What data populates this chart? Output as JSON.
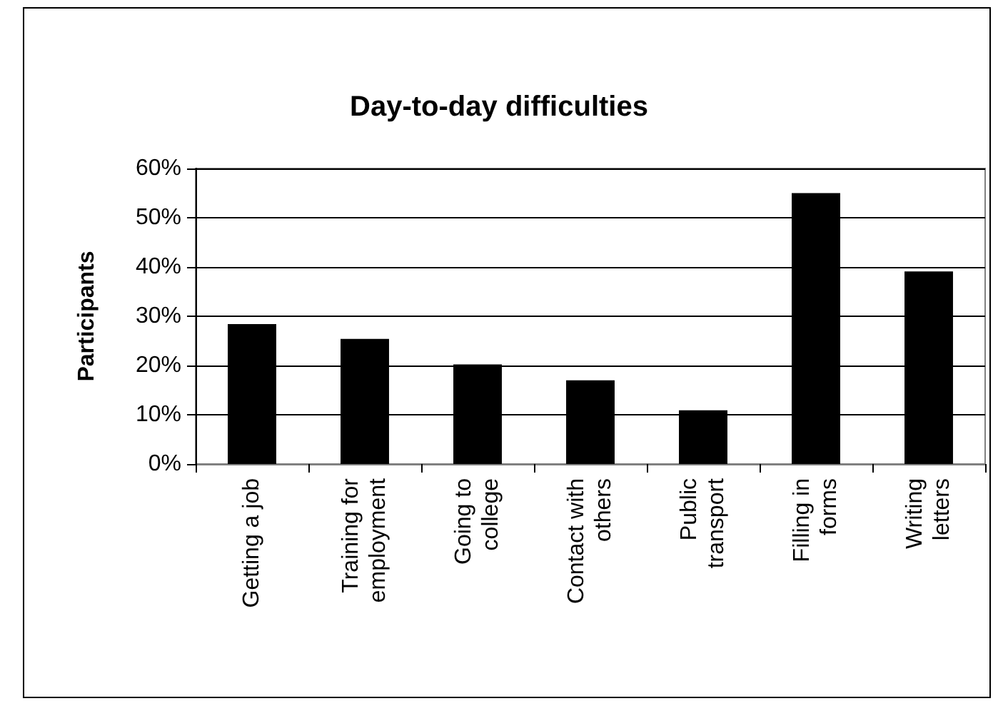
{
  "chart_data": {
    "type": "bar",
    "title": "Day-to-day difficulties",
    "ylabel": "Participants",
    "categories": [
      "Getting a job",
      "Training for\nemployment",
      "Going to\ncollege",
      "Contact with\nothers",
      "Public\ntransport",
      "Filling in\nforms",
      "Writing\nletters"
    ],
    "values": [
      28.4,
      25.4,
      20.2,
      17.0,
      10.9,
      55.0,
      39.1
    ],
    "color": "#000000",
    "ylim": [
      0,
      60
    ],
    "yticks": [
      {
        "value": 0,
        "label": "0%"
      },
      {
        "value": 10,
        "label": "10%"
      },
      {
        "value": 20,
        "label": "20%"
      },
      {
        "value": 30,
        "label": "30%"
      },
      {
        "value": 40,
        "label": "40%"
      },
      {
        "value": 50,
        "label": "50%"
      },
      {
        "value": 60,
        "label": "60%"
      }
    ],
    "grid": "y"
  }
}
